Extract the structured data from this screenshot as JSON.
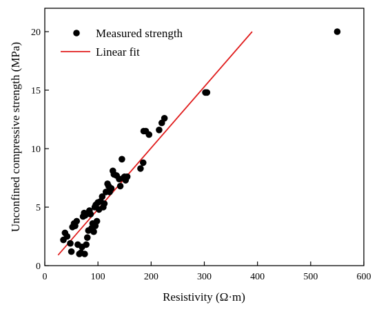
{
  "chart_data": {
    "type": "scatter",
    "xlabel": "Resistivity (Ω·m)",
    "ylabel": "Unconfined compressive strength (MPa)",
    "xlim": [
      0,
      600
    ],
    "ylim": [
      0,
      22
    ],
    "xticks": [
      0,
      100,
      200,
      300,
      400,
      500,
      600
    ],
    "yticks": [
      0,
      5,
      10,
      15,
      20
    ],
    "x_tick_labels": [
      "0",
      "100",
      "200",
      "300",
      "400",
      "500",
      "600"
    ],
    "y_tick_labels": [
      "0",
      "5",
      "10",
      "15",
      "20"
    ],
    "legend_position": "top-left",
    "grid": false,
    "series": [
      {
        "name": "Measured strength",
        "type": "scatter",
        "color": "#000000",
        "points": [
          [
            35,
            2.2
          ],
          [
            38,
            2.8
          ],
          [
            42,
            2.5
          ],
          [
            48,
            1.9
          ],
          [
            50,
            1.2
          ],
          [
            52,
            3.3
          ],
          [
            55,
            3.6
          ],
          [
            57,
            3.4
          ],
          [
            60,
            3.8
          ],
          [
            62,
            1.8
          ],
          [
            65,
            1.0
          ],
          [
            68,
            1.1
          ],
          [
            70,
            1.6
          ],
          [
            72,
            4.2
          ],
          [
            74,
            4.5
          ],
          [
            75,
            1.0
          ],
          [
            76,
            4.3
          ],
          [
            78,
            1.8
          ],
          [
            80,
            2.4
          ],
          [
            82,
            3.0
          ],
          [
            84,
            4.7
          ],
          [
            86,
            4.4
          ],
          [
            88,
            3.2
          ],
          [
            90,
            3.6
          ],
          [
            92,
            2.9
          ],
          [
            94,
            5.0
          ],
          [
            95,
            3.4
          ],
          [
            96,
            5.2
          ],
          [
            98,
            3.8
          ],
          [
            100,
            5.4
          ],
          [
            102,
            4.8
          ],
          [
            105,
            5.5
          ],
          [
            108,
            5.9
          ],
          [
            110,
            5.0
          ],
          [
            112,
            5.3
          ],
          [
            115,
            6.3
          ],
          [
            118,
            7.0
          ],
          [
            120,
            6.8
          ],
          [
            122,
            6.3
          ],
          [
            125,
            6.6
          ],
          [
            128,
            8.1
          ],
          [
            130,
            7.8
          ],
          [
            135,
            7.7
          ],
          [
            140,
            7.4
          ],
          [
            142,
            6.8
          ],
          [
            145,
            9.1
          ],
          [
            148,
            7.5
          ],
          [
            150,
            7.6
          ],
          [
            152,
            7.3
          ],
          [
            155,
            7.6
          ],
          [
            180,
            8.3
          ],
          [
            185,
            8.8
          ],
          [
            186,
            11.5
          ],
          [
            190,
            11.5
          ],
          [
            196,
            11.2
          ],
          [
            215,
            11.6
          ],
          [
            220,
            12.2
          ],
          [
            225,
            12.6
          ],
          [
            302,
            14.8
          ],
          [
            305,
            14.8
          ],
          [
            550,
            20.0
          ]
        ]
      },
      {
        "name": "Linear fit",
        "type": "line",
        "color": "#e01b1b",
        "points": [
          [
            25,
            0.9
          ],
          [
            390,
            20.0
          ]
        ]
      }
    ]
  }
}
